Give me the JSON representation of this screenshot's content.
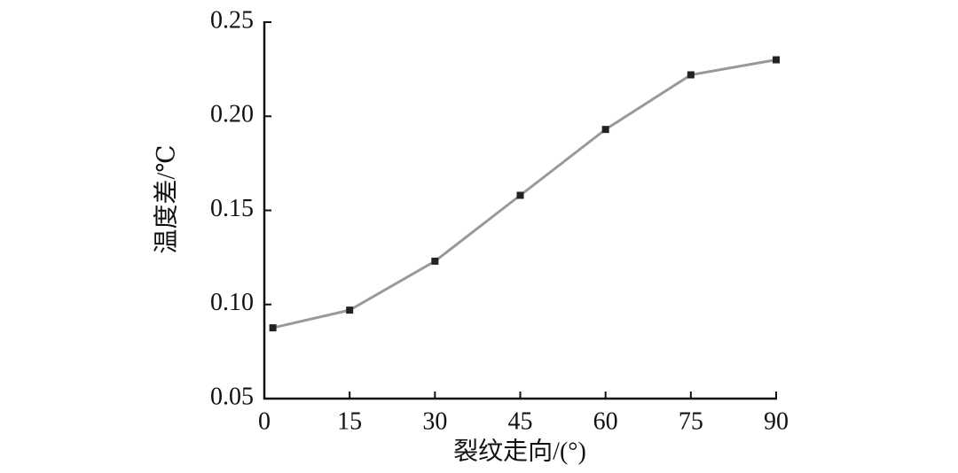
{
  "chart_data": {
    "type": "line",
    "x_label": "裂纹走向/(°)",
    "y_label": "温度差/℃",
    "x": [
      1.5,
      15,
      30,
      45,
      60,
      75,
      90
    ],
    "series": [
      {
        "name": "温度差",
        "color": "#999999",
        "values": [
          0.0876,
          0.097,
          0.123,
          0.158,
          0.193,
          0.222,
          0.23
        ]
      }
    ],
    "xlim": [
      0,
      90
    ],
    "xticks": [
      0,
      15,
      30,
      45,
      60,
      75,
      90
    ],
    "ylim": [
      0.05,
      0.25
    ],
    "yticks": [
      0.05,
      {
        "value": 0.1,
        "label": "0.10"
      },
      0.15,
      {
        "value": 0.2,
        "label": "0.20"
      },
      0.25
    ],
    "marker_color": "#222222",
    "grid": false
  }
}
